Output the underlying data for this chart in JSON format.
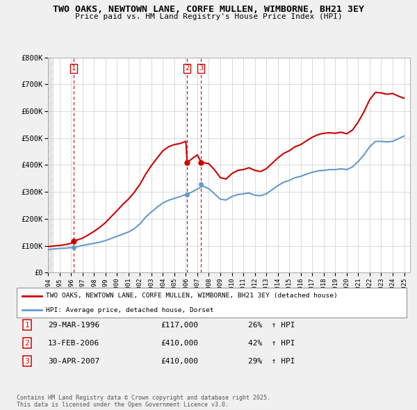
{
  "title": "TWO OAKS, NEWTOWN LANE, CORFE MULLEN, WIMBORNE, BH21 3EY",
  "subtitle": "Price paid vs. HM Land Registry's House Price Index (HPI)",
  "ylabel_ticks": [
    "£0",
    "£100K",
    "£200K",
    "£300K",
    "£400K",
    "£500K",
    "£600K",
    "£700K",
    "£800K"
  ],
  "ytick_values": [
    0,
    100000,
    200000,
    300000,
    400000,
    500000,
    600000,
    700000,
    800000
  ],
  "ylim": [
    0,
    820000
  ],
  "xlim_start": 1994.0,
  "xlim_end": 2025.5,
  "red_line_color": "#cc0000",
  "blue_line_color": "#6699cc",
  "background_color": "#f0f0f0",
  "plot_bg_color": "#ffffff",
  "grid_color": "#cccccc",
  "transactions": [
    {
      "num": 1,
      "date": "29-MAR-1996",
      "price": 117000,
      "year": 1996.23,
      "hpi_pct": "26%",
      "direction": "↑"
    },
    {
      "num": 2,
      "date": "13-FEB-2006",
      "price": 410000,
      "year": 2006.12,
      "hpi_pct": "42%",
      "direction": "↑"
    },
    {
      "num": 3,
      "date": "30-APR-2007",
      "price": 410000,
      "year": 2007.33,
      "hpi_pct": "29%",
      "direction": "↑"
    }
  ],
  "legend_label_red": "TWO OAKS, NEWTOWN LANE, CORFE MULLEN, WIMBORNE, BH21 3EY (detached house)",
  "legend_label_blue": "HPI: Average price, detached house, Dorset",
  "footer": "Contains HM Land Registry data © Crown copyright and database right 2025.\nThis data is licensed under the Open Government Licence v3.0.",
  "hpi_data": {
    "years": [
      1994.0,
      1994.5,
      1995.0,
      1995.5,
      1996.0,
      1996.5,
      1997.0,
      1997.5,
      1998.0,
      1998.5,
      1999.0,
      1999.5,
      2000.0,
      2000.5,
      2001.0,
      2001.5,
      2002.0,
      2002.5,
      2003.0,
      2003.5,
      2004.0,
      2004.5,
      2005.0,
      2005.5,
      2006.0,
      2006.5,
      2007.0,
      2007.5,
      2008.0,
      2008.5,
      2009.0,
      2009.5,
      2010.0,
      2010.5,
      2011.0,
      2011.5,
      2012.0,
      2012.5,
      2013.0,
      2013.5,
      2014.0,
      2014.5,
      2015.0,
      2015.5,
      2016.0,
      2016.5,
      2017.0,
      2017.5,
      2018.0,
      2018.5,
      2019.0,
      2019.5,
      2020.0,
      2020.5,
      2021.0,
      2021.5,
      2022.0,
      2022.5,
      2023.0,
      2023.5,
      2024.0,
      2024.5,
      2025.0
    ],
    "values": [
      86000,
      88000,
      90000,
      91000,
      93000,
      96000,
      101000,
      105000,
      109000,
      113000,
      119000,
      127000,
      135000,
      143000,
      151000,
      163000,
      181000,
      206000,
      226000,
      243000,
      259000,
      269000,
      276000,
      283000,
      291000,
      299000,
      311000,
      322000,
      312000,
      293000,
      273000,
      270000,
      283000,
      290000,
      293000,
      296000,
      288000,
      286000,
      293000,
      308000,
      323000,
      336000,
      343000,
      353000,
      358000,
      366000,
      373000,
      378000,
      380000,
      383000,
      383000,
      386000,
      383000,
      393000,
      413000,
      438000,
      468000,
      488000,
      488000,
      486000,
      488000,
      498000,
      508000
    ]
  },
  "property_data": {
    "years": [
      1994.0,
      1994.5,
      1995.0,
      1995.5,
      1996.0,
      1996.23,
      1997.0,
      1997.5,
      1998.0,
      1998.5,
      1999.0,
      1999.5,
      2000.0,
      2000.5,
      2001.0,
      2001.5,
      2002.0,
      2002.5,
      2003.0,
      2003.5,
      2004.0,
      2004.5,
      2005.0,
      2005.5,
      2006.0,
      2006.12,
      2007.0,
      2007.33,
      2008.0,
      2008.5,
      2009.0,
      2009.5,
      2010.0,
      2010.5,
      2011.0,
      2011.5,
      2012.0,
      2012.5,
      2013.0,
      2013.5,
      2014.0,
      2014.5,
      2015.0,
      2015.5,
      2016.0,
      2016.5,
      2017.0,
      2017.5,
      2018.0,
      2018.5,
      2019.0,
      2019.5,
      2020.0,
      2020.5,
      2021.0,
      2021.5,
      2022.0,
      2022.5,
      2023.0,
      2023.5,
      2024.0,
      2024.5,
      2025.0
    ],
    "values": [
      97000,
      99000,
      101000,
      104000,
      109000,
      117000,
      128000,
      140000,
      153000,
      168000,
      186000,
      208000,
      230000,
      253000,
      273000,
      298000,
      328000,
      366000,
      398000,
      426000,
      453000,
      468000,
      476000,
      480000,
      488000,
      410000,
      438000,
      410000,
      405000,
      382000,
      353000,
      348000,
      368000,
      380000,
      383000,
      390000,
      380000,
      376000,
      386000,
      406000,
      426000,
      443000,
      453000,
      468000,
      476000,
      490000,
      503000,
      513000,
      518000,
      520000,
      518000,
      522000,
      516000,
      530000,
      560000,
      598000,
      643000,
      670000,
      668000,
      663000,
      666000,
      656000,
      648000
    ]
  }
}
